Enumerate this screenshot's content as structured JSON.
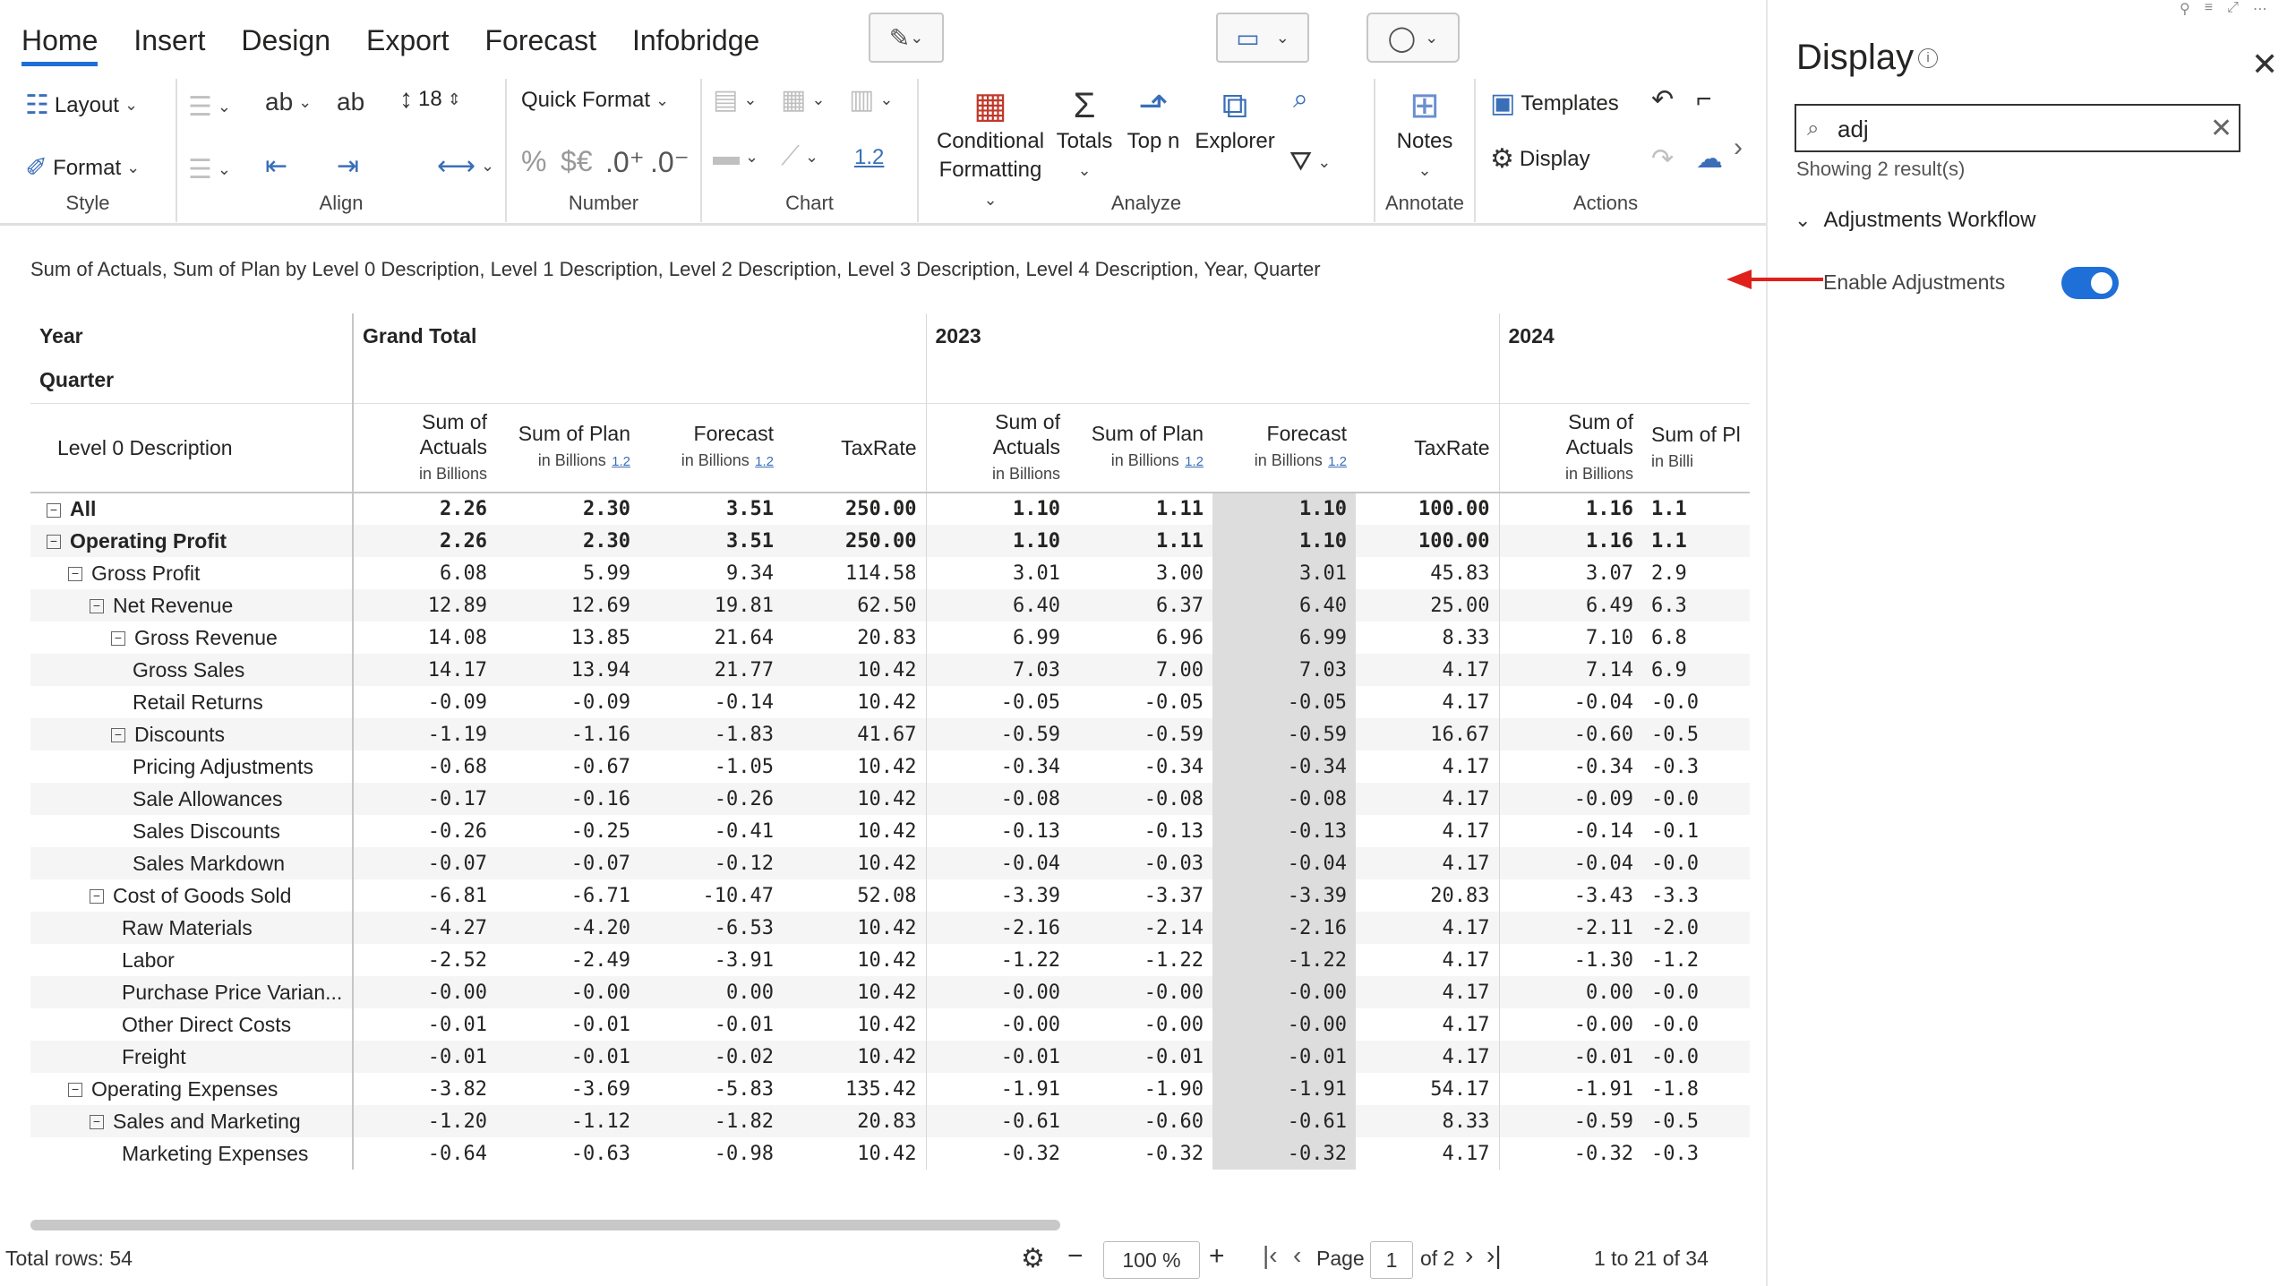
{
  "ribbon": {
    "tabs": [
      "Home",
      "Insert",
      "Design",
      "Export",
      "Forecast",
      "Infobridge"
    ],
    "style": {
      "layout": "Layout",
      "format": "Format",
      "label": "Style"
    },
    "align": {
      "font_size": "18",
      "label": "Align"
    },
    "number": {
      "quick_format": "Quick Format",
      "percent": "%",
      "currency": "$€",
      "inc_dec": ".0⁺",
      "dec_dec": ".0⁻",
      "label": "Number"
    },
    "chart": {
      "scale": "1.2",
      "label": "Chart"
    },
    "analyze": {
      "conditional": "Conditional",
      "formatting": "Formatting",
      "totals": "Totals",
      "topn": "Top n",
      "explorer": "Explorer",
      "label": "Analyze"
    },
    "annotate": {
      "notes": "Notes",
      "label": "Annotate"
    },
    "actions": {
      "templates": "Templates",
      "display": "Display",
      "label": "Actions"
    }
  },
  "report": {
    "subtitle": "Sum of Actuals, Sum of Plan by Level 0 Description, Level 1 Description, Level 2 Description, Level 3 Description, Level 4 Description, Year, Quarter",
    "year_label": "Year",
    "quarter_label": "Quarter",
    "desc_header": "Level 0 Description",
    "groups": [
      "Grand Total",
      "2023",
      "2024"
    ],
    "col_headers": {
      "actuals_1": "Sum of",
      "actuals_2": "Actuals",
      "unit": "in Billions",
      "plan": "Sum of Plan",
      "forecast": "Forecast",
      "taxrate": "TaxRate",
      "plan_cut": "Sum of Pl",
      "unit_cut": "in Billi",
      "mini": "1.2"
    },
    "rows": [
      {
        "label": "All",
        "indent": 0,
        "toggle": true,
        "bold": true,
        "v": [
          "2.26",
          "2.30",
          "3.51",
          "250.00",
          "1.10",
          "1.11",
          "1.10",
          "100.00",
          "1.16",
          "1.1"
        ]
      },
      {
        "label": "Operating Profit",
        "indent": 0,
        "toggle": true,
        "bold": true,
        "v": [
          "2.26",
          "2.30",
          "3.51",
          "250.00",
          "1.10",
          "1.11",
          "1.10",
          "100.00",
          "1.16",
          "1.1"
        ]
      },
      {
        "label": "Gross Profit",
        "indent": 1,
        "toggle": true,
        "bold": false,
        "v": [
          "6.08",
          "5.99",
          "9.34",
          "114.58",
          "3.01",
          "3.00",
          "3.01",
          "45.83",
          "3.07",
          "2.9"
        ]
      },
      {
        "label": "Net Revenue",
        "indent": 2,
        "toggle": true,
        "bold": false,
        "v": [
          "12.89",
          "12.69",
          "19.81",
          "62.50",
          "6.40",
          "6.37",
          "6.40",
          "25.00",
          "6.49",
          "6.3"
        ]
      },
      {
        "label": "Gross Revenue",
        "indent": 3,
        "toggle": true,
        "bold": false,
        "v": [
          "14.08",
          "13.85",
          "21.64",
          "20.83",
          "6.99",
          "6.96",
          "6.99",
          "8.33",
          "7.10",
          "6.8"
        ]
      },
      {
        "label": "Gross Sales",
        "indent": 4,
        "toggle": false,
        "bold": false,
        "v": [
          "14.17",
          "13.94",
          "21.77",
          "10.42",
          "7.03",
          "7.00",
          "7.03",
          "4.17",
          "7.14",
          "6.9"
        ]
      },
      {
        "label": "Retail Returns",
        "indent": 4,
        "toggle": false,
        "bold": false,
        "v": [
          "-0.09",
          "-0.09",
          "-0.14",
          "10.42",
          "-0.05",
          "-0.05",
          "-0.05",
          "4.17",
          "-0.04",
          "-0.0"
        ]
      },
      {
        "label": "Discounts",
        "indent": 3,
        "toggle": true,
        "bold": false,
        "v": [
          "-1.19",
          "-1.16",
          "-1.83",
          "41.67",
          "-0.59",
          "-0.59",
          "-0.59",
          "16.67",
          "-0.60",
          "-0.5"
        ]
      },
      {
        "label": "Pricing Adjustments",
        "indent": 4,
        "toggle": false,
        "bold": false,
        "v": [
          "-0.68",
          "-0.67",
          "-1.05",
          "10.42",
          "-0.34",
          "-0.34",
          "-0.34",
          "4.17",
          "-0.34",
          "-0.3"
        ]
      },
      {
        "label": "Sale Allowances",
        "indent": 4,
        "toggle": false,
        "bold": false,
        "v": [
          "-0.17",
          "-0.16",
          "-0.26",
          "10.42",
          "-0.08",
          "-0.08",
          "-0.08",
          "4.17",
          "-0.09",
          "-0.0"
        ]
      },
      {
        "label": "Sales Discounts",
        "indent": 4,
        "toggle": false,
        "bold": false,
        "v": [
          "-0.26",
          "-0.25",
          "-0.41",
          "10.42",
          "-0.13",
          "-0.13",
          "-0.13",
          "4.17",
          "-0.14",
          "-0.1"
        ]
      },
      {
        "label": "Sales Markdown",
        "indent": 4,
        "toggle": false,
        "bold": false,
        "v": [
          "-0.07",
          "-0.07",
          "-0.12",
          "10.42",
          "-0.04",
          "-0.03",
          "-0.04",
          "4.17",
          "-0.04",
          "-0.0"
        ]
      },
      {
        "label": "Cost of Goods Sold",
        "indent": 2,
        "toggle": true,
        "bold": false,
        "v": [
          "-6.81",
          "-6.71",
          "-10.47",
          "52.08",
          "-3.39",
          "-3.37",
          "-3.39",
          "20.83",
          "-3.43",
          "-3.3"
        ]
      },
      {
        "label": "Raw Materials",
        "indent": 3.5,
        "toggle": false,
        "bold": false,
        "v": [
          "-4.27",
          "-4.20",
          "-6.53",
          "10.42",
          "-2.16",
          "-2.14",
          "-2.16",
          "4.17",
          "-2.11",
          "-2.0"
        ]
      },
      {
        "label": "Labor",
        "indent": 3.5,
        "toggle": false,
        "bold": false,
        "v": [
          "-2.52",
          "-2.49",
          "-3.91",
          "10.42",
          "-1.22",
          "-1.22",
          "-1.22",
          "4.17",
          "-1.30",
          "-1.2"
        ]
      },
      {
        "label": "Purchase Price Varian...",
        "indent": 3.5,
        "toggle": false,
        "bold": false,
        "v": [
          "-0.00",
          "-0.00",
          "0.00",
          "10.42",
          "-0.00",
          "-0.00",
          "-0.00",
          "4.17",
          "0.00",
          "-0.0"
        ]
      },
      {
        "label": "Other Direct Costs",
        "indent": 3.5,
        "toggle": false,
        "bold": false,
        "v": [
          "-0.01",
          "-0.01",
          "-0.01",
          "10.42",
          "-0.00",
          "-0.00",
          "-0.00",
          "4.17",
          "-0.00",
          "-0.0"
        ]
      },
      {
        "label": "Freight",
        "indent": 3.5,
        "toggle": false,
        "bold": false,
        "v": [
          "-0.01",
          "-0.01",
          "-0.02",
          "10.42",
          "-0.01",
          "-0.01",
          "-0.01",
          "4.17",
          "-0.01",
          "-0.0"
        ]
      },
      {
        "label": "Operating Expenses",
        "indent": 1,
        "toggle": true,
        "bold": false,
        "v": [
          "-3.82",
          "-3.69",
          "-5.83",
          "135.42",
          "-1.91",
          "-1.90",
          "-1.91",
          "54.17",
          "-1.91",
          "-1.8"
        ]
      },
      {
        "label": "Sales and Marketing",
        "indent": 2,
        "toggle": true,
        "bold": false,
        "v": [
          "-1.20",
          "-1.12",
          "-1.82",
          "20.83",
          "-0.61",
          "-0.60",
          "-0.61",
          "8.33",
          "-0.59",
          "-0.5"
        ]
      },
      {
        "label": "Marketing Expenses",
        "indent": 3.5,
        "toggle": false,
        "bold": false,
        "v": [
          "-0.64",
          "-0.63",
          "-0.98",
          "10.42",
          "-0.32",
          "-0.32",
          "-0.32",
          "4.17",
          "-0.32",
          "-0.3"
        ]
      }
    ]
  },
  "footer": {
    "total_rows": "Total rows: 54",
    "zoom": "100 %",
    "page_label": "Page",
    "page_value": "1",
    "page_of": "of 2",
    "range": "1 to 21 of 34"
  },
  "panel": {
    "title": "Display",
    "search_value": "adj",
    "result_count": "Showing 2 result(s)",
    "section": "Adjustments Workflow",
    "option_label": "Enable Adjustments",
    "option_enabled": true
  },
  "colors": {
    "accent": "#1f6fd8",
    "forecast_col": "#dddddd",
    "annotation_arrow": "#e0201b"
  }
}
